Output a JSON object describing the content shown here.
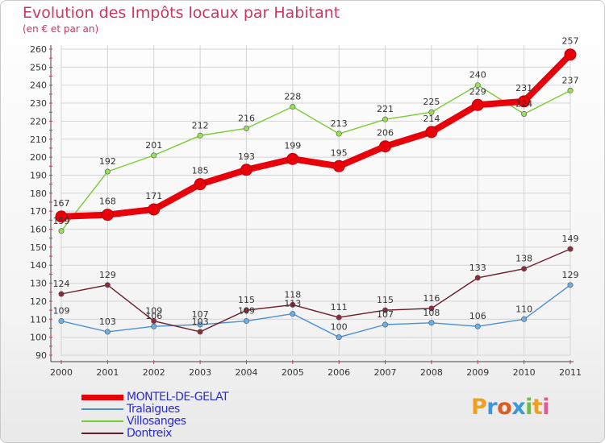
{
  "header": {
    "title": "Evolution des Impôts locaux par Habitant",
    "subtitle": "(en € et par an)"
  },
  "logo": {
    "letters": [
      "P",
      "r",
      "o",
      "x",
      "i",
      "t",
      "i"
    ],
    "colors": [
      "#f0a020",
      "#3a9ad9",
      "#e05a20",
      "#3a9ad9",
      "#6cbf3c",
      "#f0a020",
      "#e05a9a"
    ]
  },
  "chart_data": {
    "type": "line",
    "title": "Evolution des Impôts locaux par Habitant",
    "subtitle": "(en € et par an)",
    "xlabel": "",
    "ylabel": "",
    "x": [
      "2000",
      "2001",
      "2002",
      "2003",
      "2004",
      "2005",
      "2006",
      "2007",
      "2008",
      "2009",
      "2010",
      "2011"
    ],
    "ylim": [
      90,
      260
    ],
    "yticks": [
      90,
      100,
      110,
      120,
      130,
      140,
      150,
      160,
      170,
      180,
      190,
      200,
      210,
      220,
      230,
      240,
      250,
      260
    ],
    "grid": true,
    "legend_position": "bottom-left",
    "series": [
      {
        "name": "MONTEL-DE-GELAT",
        "values": [
          167,
          168,
          171,
          185,
          193,
          199,
          195,
          206,
          214,
          229,
          231,
          257
        ],
        "color": "#e8000b",
        "thick": true
      },
      {
        "name": "Tralaigues",
        "values": [
          109,
          103,
          106,
          107,
          109,
          113,
          100,
          107,
          108,
          106,
          110,
          129
        ],
        "color": "#4a90d0",
        "thick": false
      },
      {
        "name": "Villosanges",
        "values": [
          159,
          192,
          201,
          212,
          216,
          228,
          213,
          221,
          225,
          240,
          224,
          237
        ],
        "color": "#77cc33",
        "thick": false
      },
      {
        "name": "Dontreix",
        "values": [
          124,
          129,
          109,
          103,
          115,
          118,
          111,
          115,
          116,
          133,
          138,
          149
        ],
        "color": "#6b1d2a",
        "thick": false
      }
    ]
  }
}
